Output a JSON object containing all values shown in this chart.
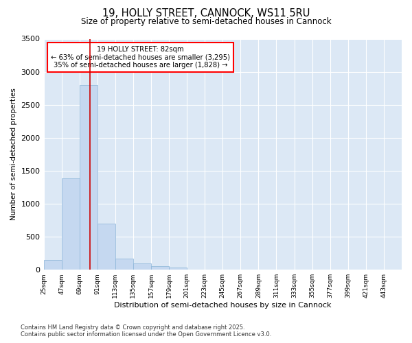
{
  "title_line1": "19, HOLLY STREET, CANNOCK, WS11 5RU",
  "title_line2": "Size of property relative to semi-detached houses in Cannock",
  "xlabel": "Distribution of semi-detached houses by size in Cannock",
  "ylabel": "Number of semi-detached properties",
  "footnote": "Contains HM Land Registry data © Crown copyright and database right 2025.\nContains public sector information licensed under the Open Government Licence v3.0.",
  "annotation_title": "19 HOLLY STREET: 82sqm",
  "annotation_line2": "← 63% of semi-detached houses are smaller (3,295)",
  "annotation_line3": "35% of semi-detached houses are larger (1,828) →",
  "property_size": 82,
  "bin_edges": [
    25,
    47,
    69,
    91,
    113,
    135,
    157,
    179,
    201,
    223,
    245,
    267,
    289,
    311,
    333,
    355,
    377,
    399,
    421,
    443,
    465
  ],
  "bar_values": [
    150,
    1380,
    2800,
    700,
    165,
    100,
    55,
    30,
    0,
    0,
    0,
    0,
    0,
    0,
    0,
    0,
    0,
    0,
    0,
    0
  ],
  "bar_color": "#c5d8f0",
  "bar_edgecolor": "#8ab4d8",
  "vline_color": "#cc0000",
  "background_color": "#dce8f5",
  "fig_background": "#ffffff",
  "ylim": [
    0,
    3500
  ],
  "yticks": [
    0,
    500,
    1000,
    1500,
    2000,
    2500,
    3000,
    3500
  ]
}
